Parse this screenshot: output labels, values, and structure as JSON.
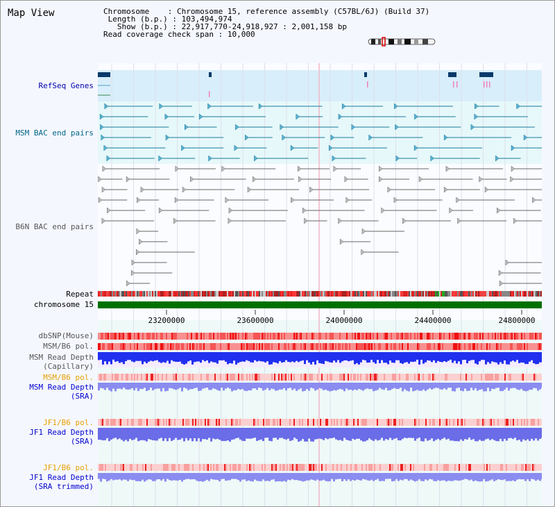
{
  "view": {
    "title": "Map View"
  },
  "info": {
    "chromosome_label": "Chromosome",
    "chromosome_value": "Chromosome 15, reference assembly (C57BL/6J) (Build 37)",
    "length_label": "Length (b.p.)",
    "length_value": "103,494,974",
    "show_label": "Show (b.p.)",
    "show_value": "22,917,770-24,918,927 : 2,001,158 bp",
    "coverage_label": "Read coverage check span",
    "coverage_value": "10,000"
  },
  "tracks": [
    {
      "id": "refseq",
      "label": "RefSeq Genes",
      "color": "#0000aa"
    },
    {
      "id": "msm-bac",
      "label": "MSM BAC end pairs",
      "color": "#006688"
    },
    {
      "id": "b6n-bac",
      "label": "B6N BAC end pairs",
      "color": "#555555"
    },
    {
      "id": "repeat",
      "label": "Repeat",
      "color": "#000000"
    },
    {
      "id": "chromosome",
      "label": "chromosome 15",
      "color": "#000000"
    },
    {
      "id": "dbsnp",
      "label": "dbSNP(Mouse)",
      "color": "#555555"
    },
    {
      "id": "msm-b6-pol-1",
      "label": "MSM/B6 pol.",
      "color": "#555555"
    },
    {
      "id": "msm-depth-cap",
      "label": "MSM Read Depth\n(Capillary)",
      "color": "#555555"
    },
    {
      "id": "msm-b6-pol-2",
      "label": "MSM/B6 pol.",
      "color": "#e8a000"
    },
    {
      "id": "msm-depth-sra",
      "label": "MSM Read Depth\n(SRA)",
      "color": "#0000cc"
    },
    {
      "id": "jf1-b6-pol-1",
      "label": "JF1/B6 pol.",
      "color": "#e8a000"
    },
    {
      "id": "jf1-depth-sra",
      "label": "JF1 Read Depth\n(SRA)",
      "color": "#0000cc"
    },
    {
      "id": "jf1-b6-pol-2",
      "label": "JF1/B6 pol.",
      "color": "#e8a000"
    },
    {
      "id": "jf1-depth-trim",
      "label": "JF1 Read Depth\n(SRA trimmed)",
      "color": "#0000cc"
    }
  ],
  "axis": {
    "ticks": [
      "23200000",
      "23600000",
      "24000000",
      "24400000",
      "24800000"
    ]
  },
  "colors": {
    "refseq_bg": "#d8eefa",
    "msm_bg": "#e6f8fa",
    "msm_feature": "#1a7a99",
    "b6n_feature": "#666666",
    "chromosome_bar": "#007000",
    "depth_capillary": "#2030ee",
    "depth_sra": "#8a8cf0"
  }
}
